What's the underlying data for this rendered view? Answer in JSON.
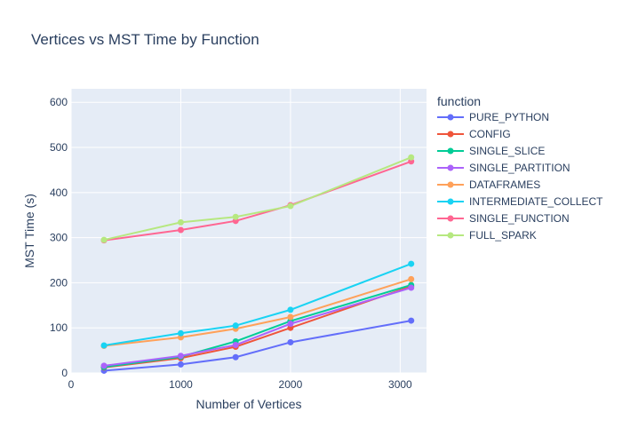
{
  "chart_data": {
    "type": "line",
    "title": "Vertices vs MST Time by Function",
    "xlabel": "Number of Vertices",
    "ylabel": "MST Time (s)",
    "xlim": [
      0,
      3240
    ],
    "ylim": [
      0,
      630
    ],
    "xticks": [
      0,
      1000,
      2000,
      3000
    ],
    "yticks": [
      0,
      100,
      200,
      300,
      400,
      500,
      600
    ],
    "grid": true,
    "legend": {
      "title": "function",
      "placement": "right"
    },
    "x": [
      300,
      1000,
      1500,
      2000,
      3100
    ],
    "series": [
      {
        "name": "PURE_PYTHON",
        "color": "#636efa",
        "values": [
          5,
          19,
          35,
          68,
          116
        ]
      },
      {
        "name": "CONFIG",
        "color": "#EF553B",
        "values": [
          12,
          33,
          58,
          100,
          192
        ]
      },
      {
        "name": "SINGLE_SLICE",
        "color": "#00cc96",
        "values": [
          13,
          36,
          70,
          115,
          195
        ]
      },
      {
        "name": "SINGLE_PARTITION",
        "color": "#ab63fa",
        "values": [
          16,
          38,
          62,
          109,
          189
        ]
      },
      {
        "name": "DATAFRAMES",
        "color": "#FFA15A",
        "values": [
          60,
          79,
          98,
          124,
          208
        ]
      },
      {
        "name": "INTERMEDIATE_COLLECT",
        "color": "#19d3f3",
        "values": [
          61,
          88,
          105,
          140,
          242
        ]
      },
      {
        "name": "SINGLE_FUNCTION",
        "color": "#FF6692",
        "values": [
          294,
          317,
          337,
          372,
          469
        ]
      },
      {
        "name": "FULL_SPARK",
        "color": "#B6E880",
        "values": [
          295,
          334,
          346,
          370,
          478
        ]
      }
    ]
  }
}
